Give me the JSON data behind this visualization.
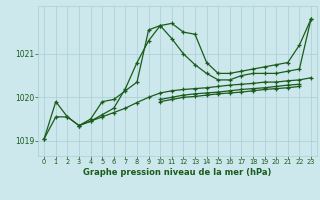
{
  "title": "Graphe pression niveau de la mer (hPa)",
  "background_color": "#cce8ec",
  "grid_color": "#aacdd4",
  "line_color": "#1a5c1a",
  "ylim": [
    1018.65,
    1022.1
  ],
  "xlim": [
    -0.5,
    23.5
  ],
  "yticks": [
    1019,
    1020,
    1021
  ],
  "xticks": [
    0,
    1,
    2,
    3,
    4,
    5,
    6,
    7,
    8,
    9,
    10,
    11,
    12,
    13,
    14,
    15,
    16,
    17,
    18,
    19,
    20,
    21,
    22,
    23
  ],
  "series1": [
    1019.05,
    1019.55,
    1019.55,
    1019.35,
    1019.45,
    1019.6,
    1019.75,
    1020.2,
    1020.8,
    1021.3,
    1021.65,
    1021.7,
    1021.5,
    1021.45,
    1020.8,
    1020.55,
    1020.55,
    1020.6,
    1020.65,
    1020.7,
    1020.75,
    1020.8,
    1021.2,
    1021.8
  ],
  "series2": [
    1019.05,
    1019.9,
    1019.55,
    1019.35,
    1019.5,
    1019.9,
    1019.95,
    1020.15,
    1020.35,
    1021.55,
    1021.65,
    1021.35,
    1021.0,
    1020.75,
    1020.55,
    1020.4,
    1020.4,
    1020.5,
    1020.55,
    1020.55,
    1020.55,
    1020.6,
    1020.65,
    1021.8
  ],
  "series3": [
    null,
    null,
    null,
    1019.35,
    1019.45,
    1019.55,
    1019.65,
    1019.75,
    1019.88,
    1020.0,
    1020.1,
    1020.15,
    1020.18,
    1020.2,
    1020.22,
    1020.25,
    1020.28,
    1020.3,
    1020.32,
    1020.35,
    1020.35,
    1020.38,
    1020.4,
    1020.45
  ],
  "series4": [
    null,
    null,
    null,
    null,
    null,
    null,
    null,
    null,
    null,
    null,
    1019.95,
    1020.0,
    1020.05,
    1020.08,
    1020.1,
    1020.12,
    1020.15,
    1020.18,
    1020.2,
    1020.22,
    1020.25,
    1020.28,
    1020.3,
    null
  ],
  "series5": [
    null,
    null,
    null,
    null,
    null,
    null,
    null,
    null,
    null,
    null,
    1019.9,
    1019.95,
    1020.0,
    1020.02,
    1020.05,
    1020.08,
    1020.1,
    1020.12,
    1020.15,
    1020.18,
    1020.2,
    1020.22,
    1020.25,
    null
  ]
}
